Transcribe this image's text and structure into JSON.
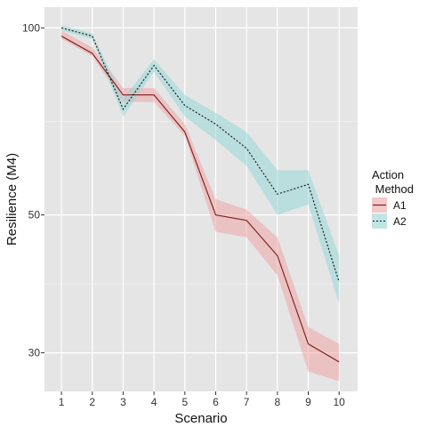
{
  "chart_data": {
    "type": "line",
    "x": [
      1,
      2,
      3,
      4,
      5,
      6,
      7,
      8,
      9,
      10
    ],
    "xlabel": "Scenario",
    "ylabel": "Resilience (M4)",
    "y_scale": "log",
    "ylim": [
      26,
      108
    ],
    "xlim": [
      0.45,
      10.6
    ],
    "y_ticks": [
      30,
      50,
      100
    ],
    "y_tick_labels": [
      "30",
      "50",
      "100"
    ],
    "x_tick_labels": [
      "1",
      "2",
      "3",
      "4",
      "5",
      "6",
      "7",
      "8",
      "9",
      "10"
    ],
    "grid": true,
    "legend": {
      "title": "Action\n Method",
      "position": "right"
    },
    "series": [
      {
        "name": "A1",
        "color": "#7a1a1a",
        "fill": "#f0a0a0",
        "line_style": "solid",
        "values": [
          97,
          91,
          78,
          78,
          68,
          50,
          49,
          43,
          31,
          29
        ],
        "lower": [
          96,
          90,
          76,
          76,
          67,
          47,
          46,
          40,
          28,
          27
        ],
        "upper": [
          99,
          93,
          80,
          80,
          70,
          53,
          51,
          46,
          33,
          31
        ]
      },
      {
        "name": "A2",
        "color": "#111111",
        "fill": "#8fd6d6",
        "line_style": "dotted",
        "values": [
          100,
          97,
          74,
          87,
          75,
          70,
          64,
          54,
          56,
          39
        ],
        "lower": [
          99,
          96,
          72,
          85,
          72,
          66,
          60,
          50,
          52,
          36
        ],
        "upper": [
          101,
          98,
          77,
          89,
          78,
          73,
          68,
          59,
          59,
          43
        ]
      }
    ]
  }
}
